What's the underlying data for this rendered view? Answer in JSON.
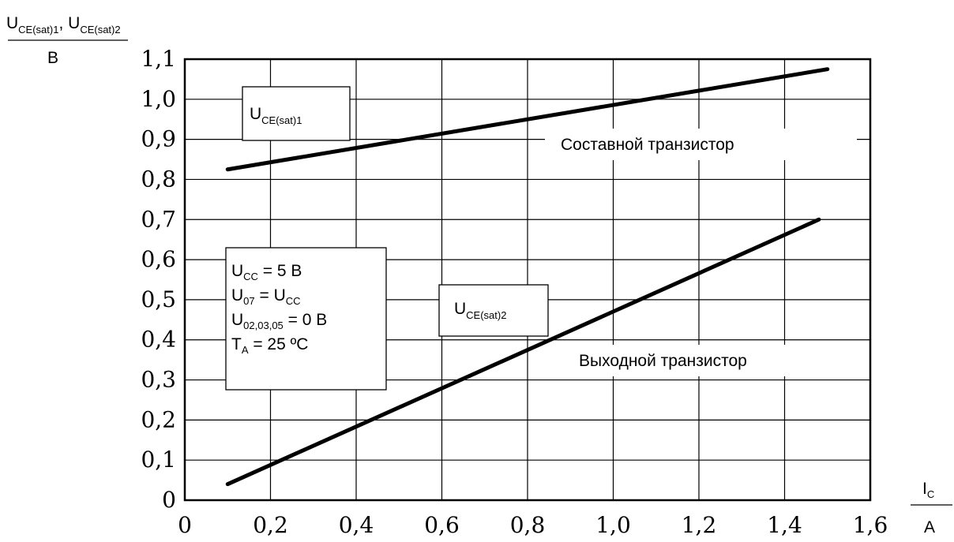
{
  "chart_data": {
    "type": "line",
    "title": "",
    "y_axis_label": {
      "quantity_1": "U",
      "subscript_1": "CE(sat)1",
      "separator": ", ",
      "quantity_2": "U",
      "subscript_2": "CE(sat)2",
      "unit": "B"
    },
    "x_axis_label": {
      "quantity": "I",
      "subscript": "C",
      "unit": "A"
    },
    "xlim": [
      0,
      1.6
    ],
    "ylim": [
      0,
      1.1
    ],
    "x_ticks": [
      "0",
      "0,2",
      "0,4",
      "0,6",
      "0,8",
      "1,0",
      "1,2",
      "1,4",
      "1,6"
    ],
    "y_ticks": [
      "0",
      "0,1",
      "0,2",
      "0,3",
      "0,4",
      "0,5",
      "0,6",
      "0,7",
      "0,8",
      "0,9",
      "1,0",
      "1,1"
    ],
    "grid": true,
    "series": [
      {
        "name": "U CE(sat)1",
        "label": {
          "main": "U",
          "sub": "CE(sat)1"
        },
        "description": "Составной транзистор",
        "x": [
          0.1,
          1.5
        ],
        "y": [
          0.825,
          1.075
        ]
      },
      {
        "name": "U CE(sat)2",
        "label": {
          "main": "U",
          "sub": "CE(sat)2"
        },
        "description": "Выходной транзистор",
        "x": [
          0.1,
          1.48
        ],
        "y": [
          0.04,
          0.7
        ]
      }
    ],
    "conditions": [
      {
        "main": "U",
        "sub": "CC",
        "rest": " = 5 B"
      },
      {
        "main": "U",
        "sub": "07",
        "rest": " = U",
        "sub2": "CC"
      },
      {
        "main": "U",
        "sub": "02,03,05",
        "rest": " = 0 B"
      },
      {
        "main": "T",
        "sub": "A",
        "rest": " = 25 ºC"
      }
    ]
  }
}
